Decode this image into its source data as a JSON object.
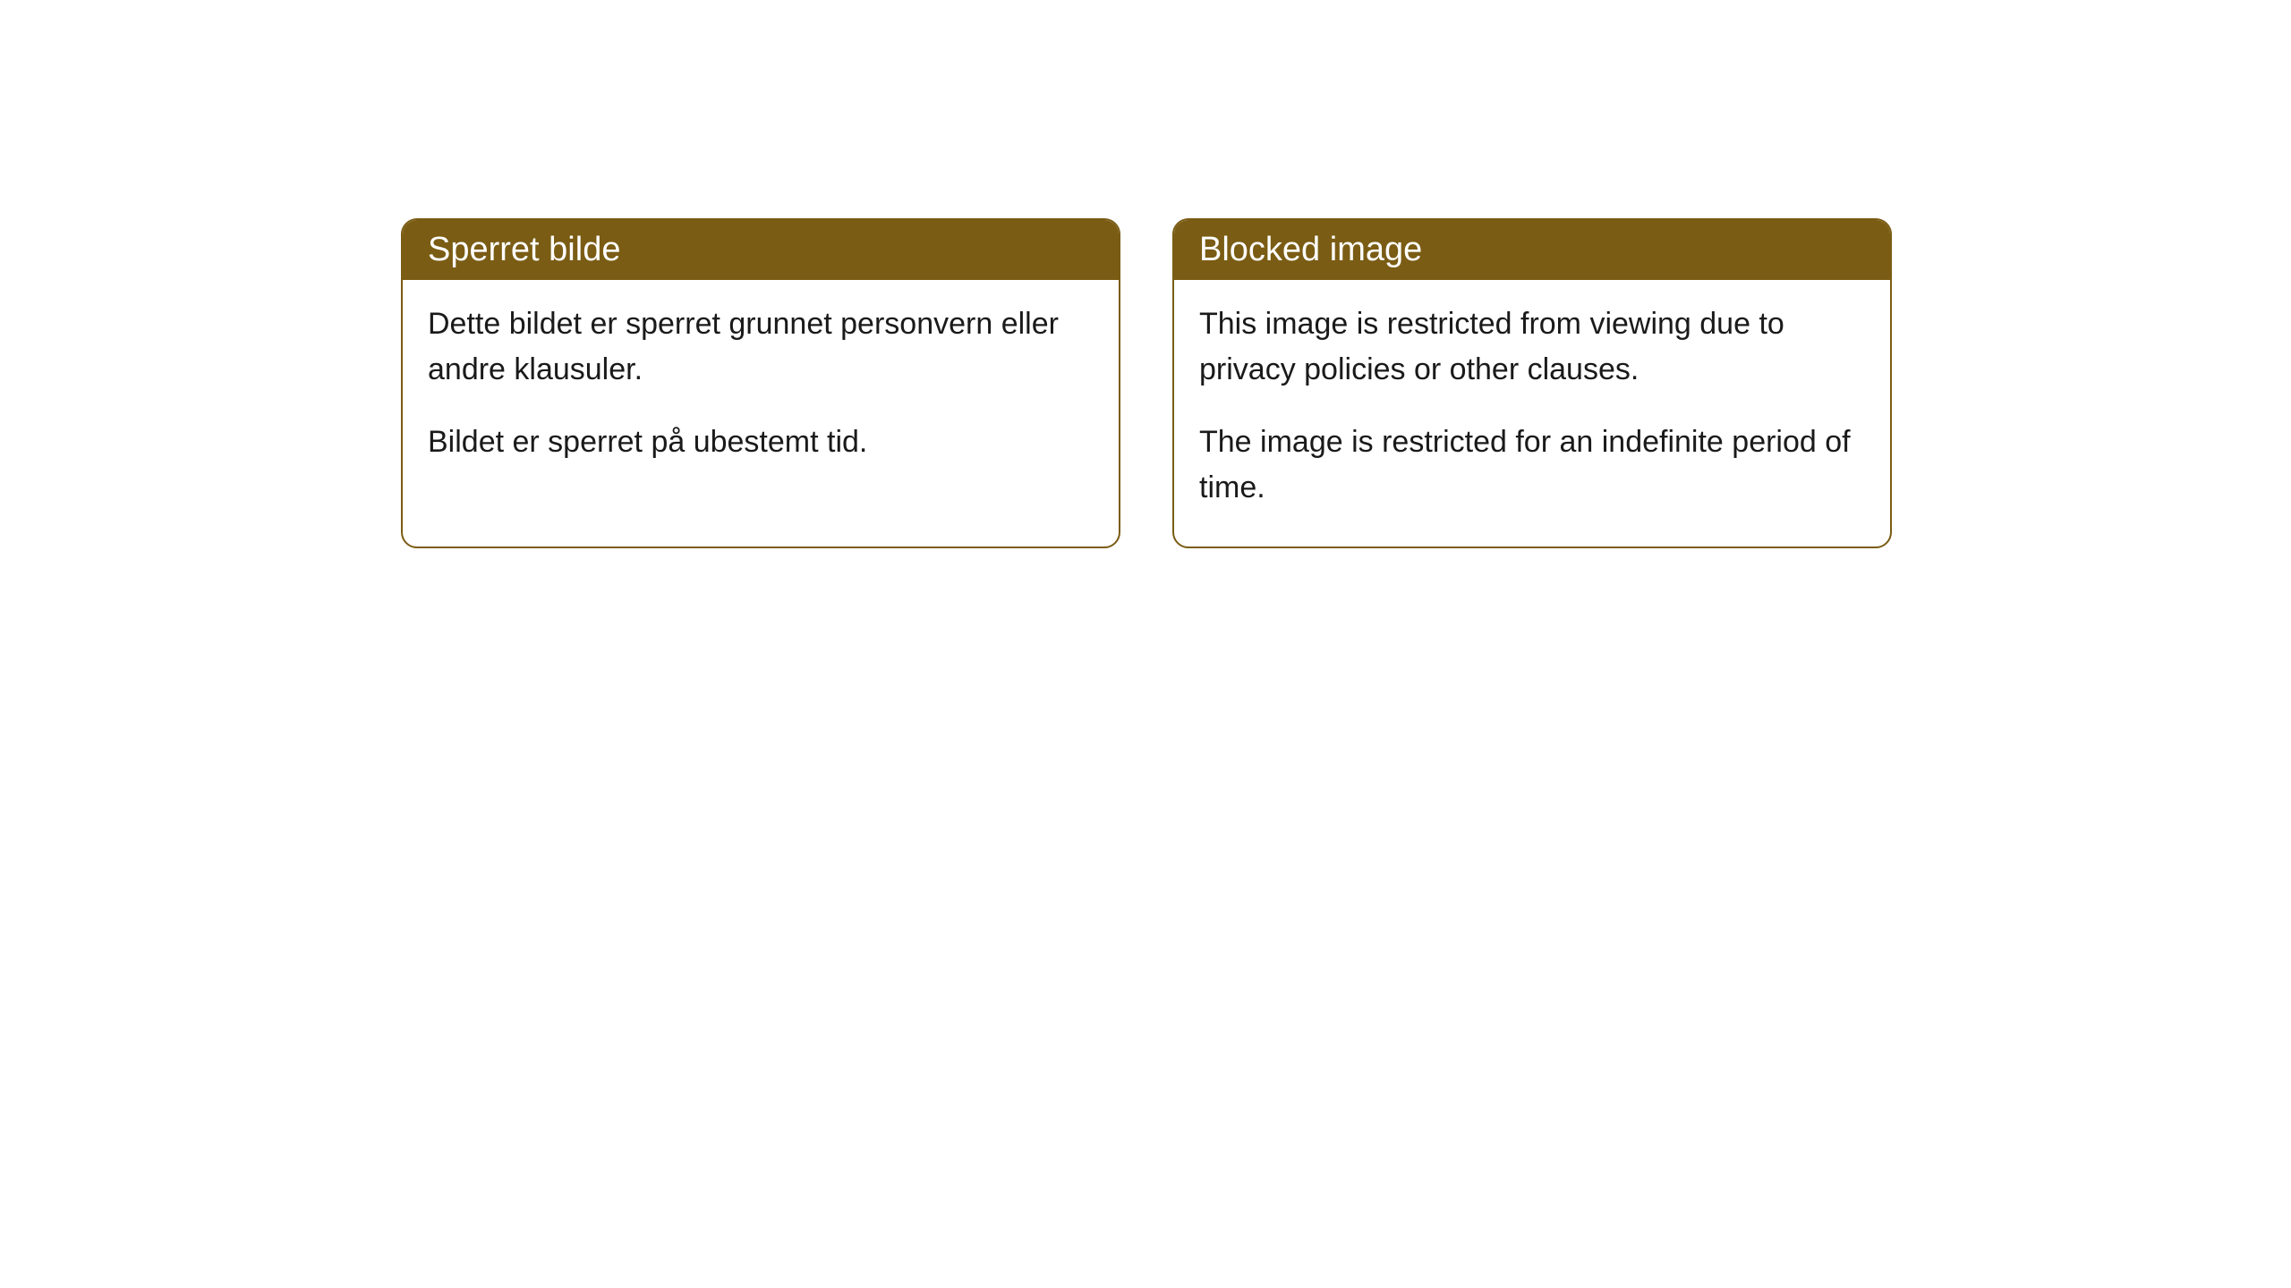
{
  "cards": [
    {
      "title": "Sperret bilde",
      "paragraph1": "Dette bildet er sperret grunnet personvern eller andre klausuler.",
      "paragraph2": "Bildet er sperret på ubestemt tid."
    },
    {
      "title": "Blocked image",
      "paragraph1": "This image is restricted from viewing due to privacy policies or other clauses.",
      "paragraph2": "The image is restricted for an indefinite period of time."
    }
  ],
  "styling": {
    "header_background": "#7a5c14",
    "header_text_color": "#ffffff",
    "border_color": "#7a5c14",
    "body_background": "#ffffff",
    "body_text_color": "#1a1a1a",
    "border_radius": 18,
    "header_fontsize": 38,
    "body_fontsize": 34
  }
}
